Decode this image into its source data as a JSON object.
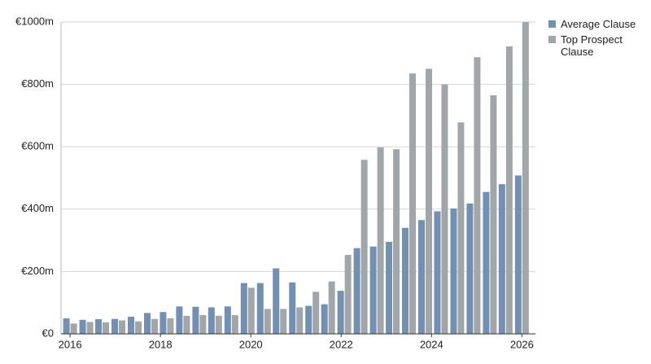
{
  "chart_data": {
    "type": "bar",
    "x": [
      2016.0,
      2016.36,
      2016.71,
      2017.07,
      2017.43,
      2017.79,
      2018.14,
      2018.5,
      2018.86,
      2019.21,
      2019.57,
      2019.93,
      2020.29,
      2020.64,
      2021.0,
      2021.36,
      2021.71,
      2022.07,
      2022.43,
      2022.79,
      2023.14,
      2023.5,
      2023.86,
      2024.21,
      2024.57,
      2024.93,
      2025.29,
      2025.64,
      2026.0
    ],
    "series": [
      {
        "name": "Average Clause",
        "color": "#7291b2",
        "values": [
          50,
          45,
          47,
          48,
          55,
          67,
          70,
          88,
          87,
          85,
          88,
          163,
          163,
          210,
          165,
          90,
          95,
          138,
          275,
          280,
          295,
          340,
          365,
          393,
          402,
          418,
          455,
          480,
          508
        ]
      },
      {
        "name": "Top Prospect Clause",
        "color": "#a1a6a9",
        "values": [
          33,
          38,
          37,
          43,
          40,
          48,
          50,
          58,
          60,
          58,
          60,
          148,
          80,
          80,
          85,
          135,
          168,
          253,
          558,
          598,
          592,
          835,
          850,
          800,
          678,
          887,
          765,
          922,
          1000
        ]
      }
    ],
    "xlim": [
      2015.8,
      2026.3
    ],
    "xticks": [
      2016,
      2018,
      2020,
      2022,
      2024,
      2026
    ],
    "ylim": [
      0,
      1000
    ],
    "yticks": [
      {
        "value": 0,
        "label": "€0"
      },
      {
        "value": 200,
        "label": "€200m"
      },
      {
        "value": 400,
        "label": "€400m"
      },
      {
        "value": 600,
        "label": "€600m"
      },
      {
        "value": 800,
        "label": "€800m"
      },
      {
        "value": 1000,
        "label": "€1000m"
      }
    ],
    "grid": true,
    "legend": "right"
  }
}
